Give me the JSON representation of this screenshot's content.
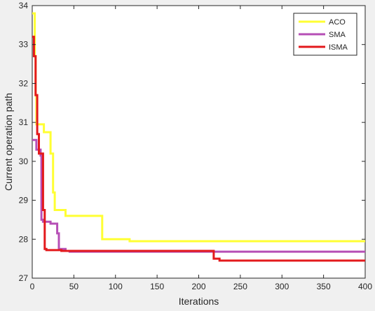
{
  "chart_data": {
    "type": "line",
    "title": "",
    "xlabel": "Iterations",
    "ylabel": "Current operation path",
    "xlim": [
      0,
      400
    ],
    "ylim": [
      27,
      34
    ],
    "xticks": [
      0,
      50,
      100,
      150,
      200,
      250,
      300,
      350,
      400
    ],
    "yticks": [
      27,
      28,
      29,
      30,
      31,
      32,
      33,
      34
    ],
    "grid": false,
    "legend_position": "top-right",
    "step": true,
    "series": [
      {
        "name": "ACO",
        "color": "#ffff33",
        "x": [
          0,
          3,
          4,
          5,
          14,
          22,
          25,
          27,
          40,
          84,
          86,
          117,
          400
        ],
        "y": [
          33.8,
          32.7,
          31.7,
          30.95,
          30.75,
          30.2,
          29.2,
          28.75,
          28.6,
          28.0,
          28.0,
          27.95,
          27.95
        ]
      },
      {
        "name": "SMA",
        "color": "#b64fb6",
        "x": [
          0,
          5,
          10,
          11,
          13,
          22,
          30,
          32,
          40,
          45,
          400
        ],
        "y": [
          30.55,
          30.3,
          30.15,
          28.5,
          28.45,
          28.4,
          28.15,
          27.75,
          27.7,
          27.68,
          27.68
        ]
      },
      {
        "name": "ISMA",
        "color": "#e3191c",
        "x": [
          0,
          2,
          4,
          6,
          8,
          10,
          13,
          15,
          17,
          35,
          218,
          225,
          400
        ],
        "y": [
          33.2,
          32.7,
          31.7,
          30.7,
          30.2,
          30.2,
          28.75,
          27.75,
          27.72,
          27.7,
          27.5,
          27.45,
          27.45
        ]
      }
    ]
  }
}
